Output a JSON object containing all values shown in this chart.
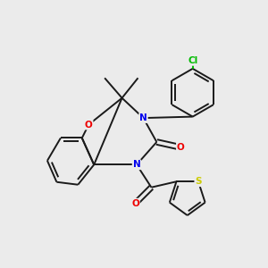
{
  "background_color": "#ebebeb",
  "bond_color": "#1a1a1a",
  "atom_colors": {
    "N": "#0000ee",
    "O": "#ee0000",
    "S": "#cccc00",
    "Cl": "#00bb00",
    "C": "#1a1a1a"
  },
  "figsize": [
    3.0,
    3.0
  ],
  "dpi": 100,
  "lw": 1.4,
  "fontsize": 7.5
}
